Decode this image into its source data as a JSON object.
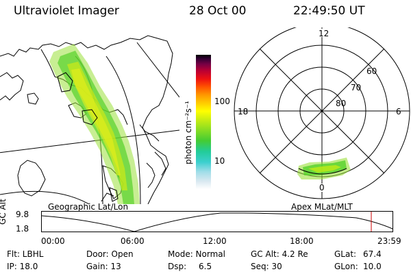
{
  "header": {
    "instrument": "Ultraviolet Imager",
    "date": "28 Oct 00",
    "time": "22:49:50 UT"
  },
  "colorbar": {
    "unit_label": "photon cm⁻²s⁻¹",
    "ticks": [
      "100",
      "10"
    ],
    "colors": [
      "#d8e8f0",
      "#b8dce8",
      "#7fd6e0",
      "#3ccfcf",
      "#22cc99",
      "#44cc33",
      "#88dd22",
      "#ccee11",
      "#ffff00",
      "#ffcc00",
      "#ff9900",
      "#ff5500",
      "#ee1111",
      "#bb0033",
      "#770044",
      "#330033",
      "#000000"
    ]
  },
  "geographic_map": {
    "label": "Geographic Lat/Lon"
  },
  "polar_plot": {
    "label": "Apex MLat/MLT",
    "mlt_labels": {
      "top": "12",
      "left": "18",
      "right": "6",
      "bottom": "0"
    },
    "lat_labels": [
      "60",
      "70",
      "80"
    ]
  },
  "altitude_plot": {
    "axis_label": "GC Alt",
    "y_ticks": [
      "9.8",
      "1.8"
    ],
    "x_ticks": [
      "00:00",
      "06:00",
      "12:00",
      "18:00",
      "23:59"
    ],
    "marker_color": "#cc0000"
  },
  "status": {
    "filter": "Flt: LBHL",
    "ip": "IP: 18.0",
    "door": "Door: Open",
    "gain": "Gain: 13",
    "mode": "Mode: Normal",
    "dsp_label": "Dsp:",
    "dsp_value": "6.5",
    "gc_alt": "GC Alt: 4.2 Re",
    "seq": "Seq: 30",
    "glat_label": "GLat:",
    "glat_value": "67.4",
    "glon_label": "GLon:",
    "glon_value": "10.0"
  }
}
